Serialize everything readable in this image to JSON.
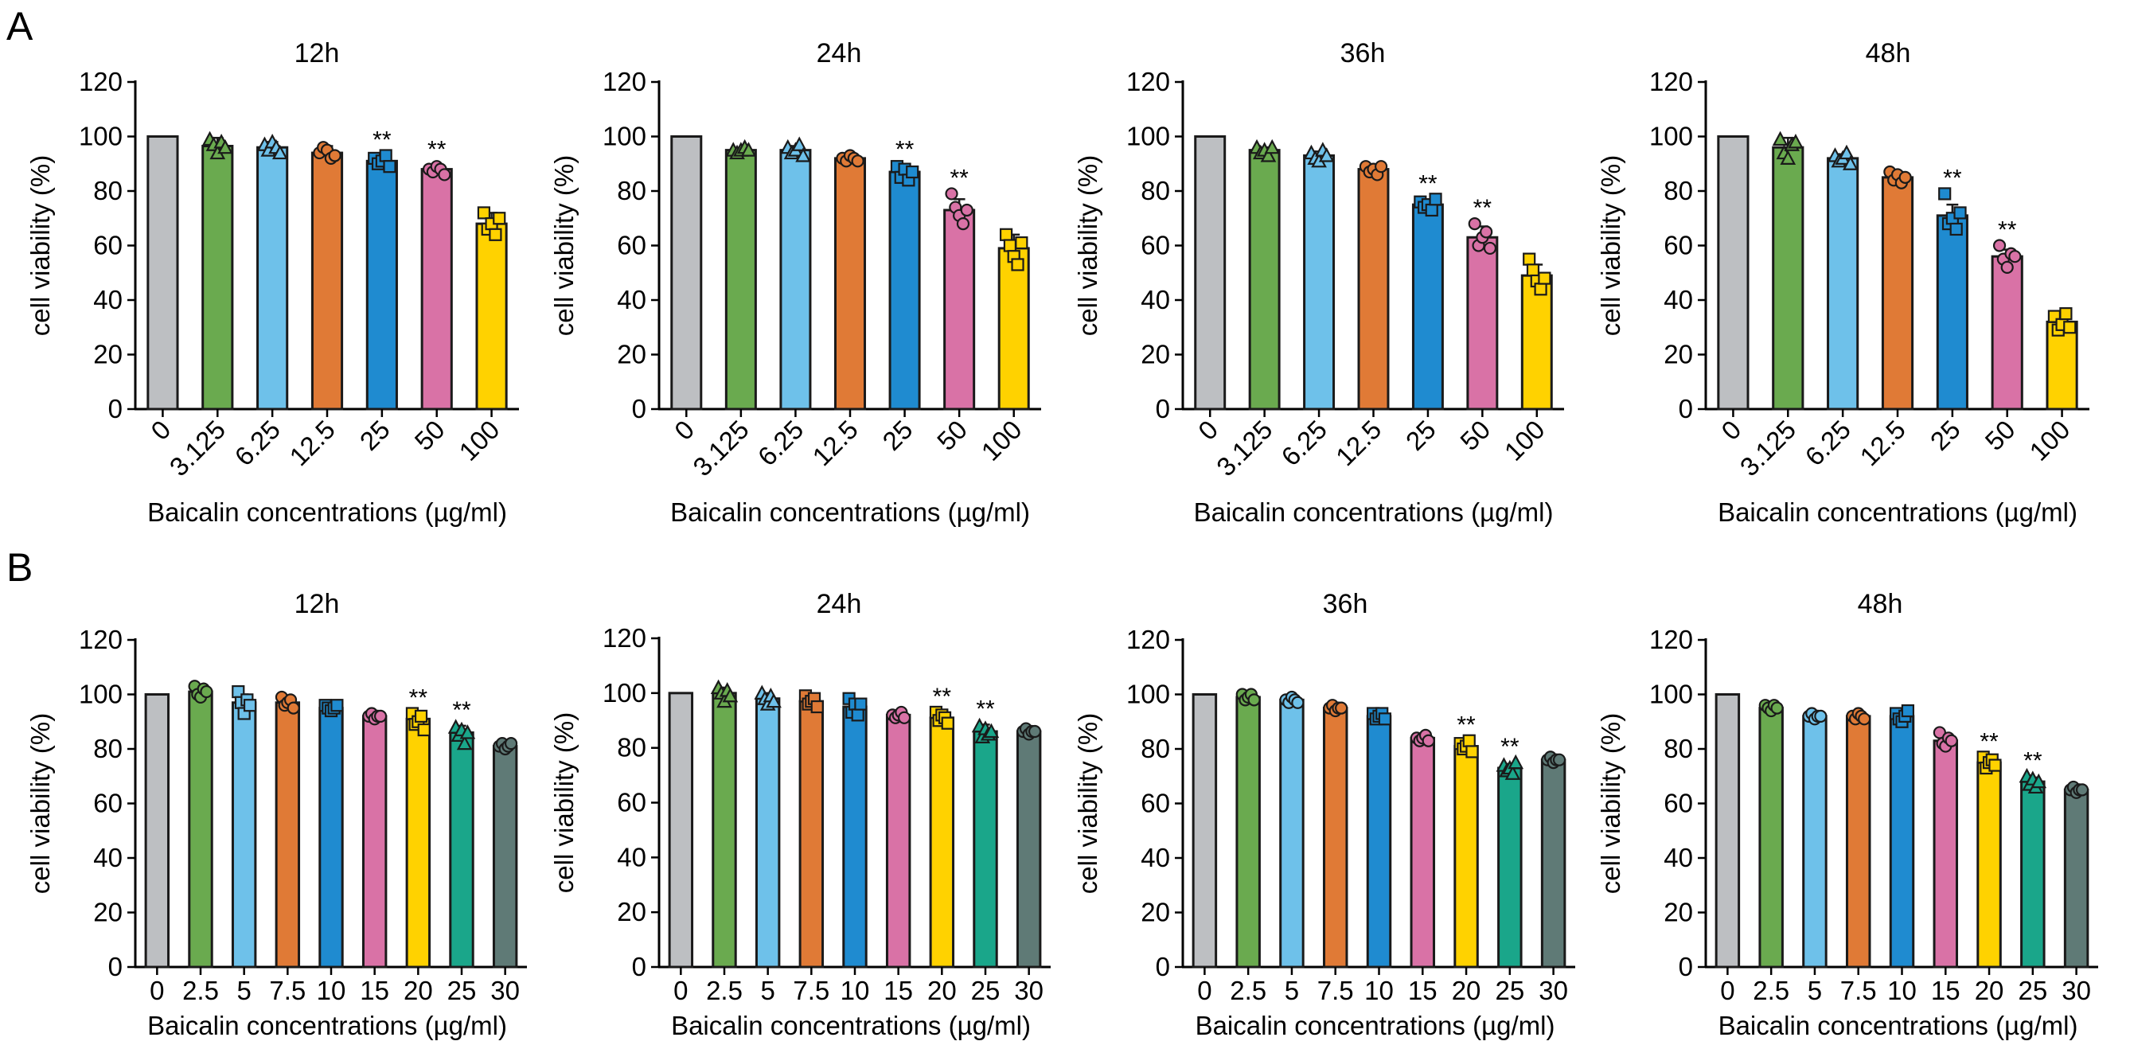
{
  "panel_labels": {
    "a": "A",
    "b": "B"
  },
  "colors": {
    "grey": "#bdbfc2",
    "green": "#6aaa4f",
    "lightblue": "#6ec1ea",
    "orange": "#e07a36",
    "blue": "#1f8bd0",
    "pink": "#d972a6",
    "yellow": "#ffd200",
    "teal": "#1aa68a",
    "slate": "#5f7a76"
  },
  "chart_data": [
    {
      "type": "bar",
      "panel": "A",
      "title": "12h",
      "xlabel": "Baicalin concentrations (µg/ml)",
      "ylabel": "cell viability (%)",
      "ylim": [
        0,
        120
      ],
      "yticks": [
        0,
        20,
        40,
        60,
        80,
        100,
        120
      ],
      "categories": [
        "0",
        "3.125",
        "6.25",
        "12.5",
        "25",
        "50",
        "100"
      ],
      "values": [
        100,
        96.5,
        96,
        94,
        91,
        88,
        68
      ],
      "errors": [
        0,
        3,
        2,
        2.5,
        2,
        1.5,
        4
      ],
      "significance": [
        "",
        "",
        "",
        "",
        "**",
        "**",
        ""
      ],
      "colors": [
        "#bdbfc2",
        "#6aaa4f",
        "#6ec1ea",
        "#e07a36",
        "#1f8bd0",
        "#d972a6",
        "#ffd200"
      ],
      "markers": [
        "none",
        "triangle",
        "triangle",
        "circle",
        "square",
        "circle",
        "square"
      ],
      "points": [
        [],
        [
          99,
          97,
          94,
          98,
          96
        ],
        [
          97,
          95,
          98,
          96,
          94
        ],
        [
          94,
          96,
          95,
          92,
          93
        ],
        [
          92,
          90,
          91,
          93,
          89
        ],
        [
          88,
          87,
          89,
          88,
          86
        ],
        [
          72,
          66,
          68,
          64,
          70
        ]
      ]
    },
    {
      "type": "bar",
      "panel": "A",
      "title": "24h",
      "xlabel": "Baicalin concentrations (µg/ml)",
      "ylabel": "cell viability (%)",
      "ylim": [
        0,
        120
      ],
      "yticks": [
        0,
        20,
        40,
        60,
        80,
        100,
        120
      ],
      "categories": [
        "0",
        "3.125",
        "6.25",
        "12.5",
        "25",
        "50",
        "100"
      ],
      "values": [
        100,
        95,
        95,
        92,
        87,
        73,
        59
      ],
      "errors": [
        0,
        0.8,
        1.5,
        1,
        2.5,
        4,
        5
      ],
      "significance": [
        "",
        "",
        "",
        "",
        "**",
        "**",
        ""
      ],
      "colors": [
        "#bdbfc2",
        "#6aaa4f",
        "#6ec1ea",
        "#e07a36",
        "#1f8bd0",
        "#d972a6",
        "#ffd200"
      ],
      "markers": [
        "none",
        "triangle",
        "triangle",
        "circle",
        "square",
        "circle",
        "square"
      ],
      "points": [
        [],
        [
          95,
          94,
          95,
          96,
          95
        ],
        [
          96,
          94,
          95,
          97,
          93
        ],
        [
          92,
          91,
          93,
          92,
          91
        ],
        [
          89,
          85,
          88,
          84,
          87
        ],
        [
          79,
          74,
          71,
          68,
          73
        ],
        [
          64,
          60,
          56,
          53,
          61
        ]
      ]
    },
    {
      "type": "bar",
      "panel": "A",
      "title": "36h",
      "xlabel": "Baicalin concentrations (µg/ml)",
      "ylabel": "cell viability (%)",
      "ylim": [
        0,
        120
      ],
      "yticks": [
        0,
        20,
        40,
        60,
        80,
        100,
        120
      ],
      "categories": [
        "0",
        "3.125",
        "6.25",
        "12.5",
        "25",
        "50",
        "100"
      ],
      "values": [
        100,
        95,
        93,
        88,
        75,
        63,
        49
      ],
      "errors": [
        0,
        1,
        1.5,
        1,
        1.5,
        4,
        4
      ],
      "significance": [
        "",
        "",
        "",
        "",
        "**",
        "**",
        ""
      ],
      "colors": [
        "#bdbfc2",
        "#6aaa4f",
        "#6ec1ea",
        "#e07a36",
        "#1f8bd0",
        "#d972a6",
        "#ffd200"
      ],
      "markers": [
        "none",
        "triangle",
        "triangle",
        "circle",
        "square",
        "circle",
        "square"
      ],
      "points": [
        [],
        [
          96,
          94,
          95,
          93,
          96
        ],
        [
          94,
          92,
          91,
          95,
          93
        ],
        [
          89,
          87,
          88,
          86,
          89
        ],
        [
          76,
          74,
          75,
          73,
          77
        ],
        [
          68,
          60,
          63,
          65,
          59
        ],
        [
          55,
          51,
          47,
          44,
          48
        ]
      ]
    },
    {
      "type": "bar",
      "panel": "A",
      "title": "48h",
      "xlabel": "Baicalin concentrations (µg/ml)",
      "ylabel": "cell viability (%)",
      "ylim": [
        0,
        120
      ],
      "yticks": [
        0,
        20,
        40,
        60,
        80,
        100,
        120
      ],
      "categories": [
        "0",
        "3.125",
        "6.25",
        "12.5",
        "25",
        "50",
        "100"
      ],
      "values": [
        100,
        96,
        92,
        85,
        71,
        56,
        32
      ],
      "errors": [
        0,
        3.5,
        1.5,
        2,
        4,
        2.5,
        2
      ],
      "significance": [
        "",
        "",
        "",
        "",
        "**",
        "**",
        ""
      ],
      "colors": [
        "#bdbfc2",
        "#6aaa4f",
        "#6ec1ea",
        "#e07a36",
        "#1f8bd0",
        "#d972a6",
        "#ffd200"
      ],
      "markers": [
        "none",
        "triangle",
        "triangle",
        "circle",
        "square",
        "circle",
        "square"
      ],
      "points": [
        [],
        [
          99,
          94,
          92,
          97,
          98
        ],
        [
          93,
          91,
          92,
          94,
          90
        ],
        [
          87,
          84,
          86,
          83,
          85
        ],
        [
          79,
          68,
          70,
          66,
          72
        ],
        [
          60,
          55,
          52,
          57,
          56
        ],
        [
          34,
          29,
          31,
          35,
          30
        ]
      ]
    },
    {
      "type": "bar",
      "panel": "B",
      "title": "12h",
      "xlabel": "Baicalin concentrations (µg/ml)",
      "ylabel": "cell viability (%)",
      "ylim": [
        0,
        120
      ],
      "yticks": [
        0,
        20,
        40,
        60,
        80,
        100,
        120
      ],
      "categories": [
        "0",
        "2.5",
        "5",
        "7.5",
        "10",
        "15",
        "20",
        "25",
        "30"
      ],
      "values": [
        100,
        101,
        97,
        97,
        95,
        92,
        91,
        86,
        81
      ],
      "errors": [
        0,
        2,
        3,
        1.5,
        1,
        0.8,
        2,
        2.5,
        0.8
      ],
      "significance": [
        "",
        "",
        "",
        "",
        "",
        "",
        "**",
        "**",
        ""
      ],
      "colors": [
        "#bdbfc2",
        "#6aaa4f",
        "#6ec1ea",
        "#e07a36",
        "#1f8bd0",
        "#d972a6",
        "#ffd200",
        "#1aa68a",
        "#5f7a76"
      ],
      "markers": [
        "none",
        "circle",
        "square",
        "circle",
        "square",
        "circle",
        "square",
        "triangle",
        "circle"
      ],
      "points": [
        [],
        [
          103,
          100,
          99,
          102,
          101
        ],
        [
          101,
          97,
          93,
          98,
          96
        ],
        [
          99,
          96,
          97,
          98,
          95
        ],
        [
          96,
          95,
          94,
          95,
          96
        ],
        [
          92,
          93,
          91,
          92,
          92
        ],
        [
          93,
          89,
          90,
          92,
          87
        ],
        [
          88,
          85,
          87,
          82,
          86
        ],
        [
          81,
          82,
          80,
          81,
          82
        ]
      ]
    },
    {
      "type": "bar",
      "panel": "B",
      "title": "24h",
      "xlabel": "Baicalin concentrations (µg/ml)",
      "ylabel": "cell viability (%)",
      "ylim": [
        0,
        120
      ],
      "yticks": [
        0,
        20,
        40,
        60,
        80,
        100,
        120
      ],
      "categories": [
        "0",
        "2.5",
        "5",
        "7.5",
        "10",
        "15",
        "20",
        "25",
        "30"
      ],
      "values": [
        100,
        100,
        98,
        97,
        95,
        92,
        91,
        86,
        86
      ],
      "errors": [
        0,
        2,
        2,
        1.5,
        2.5,
        0.8,
        1.5,
        2.5,
        0.8
      ],
      "significance": [
        "",
        "",
        "",
        "",
        "",
        "",
        "**",
        "**",
        ""
      ],
      "colors": [
        "#bdbfc2",
        "#6aaa4f",
        "#6ec1ea",
        "#e07a36",
        "#1f8bd0",
        "#d972a6",
        "#ffd200",
        "#1aa68a",
        "#5f7a76"
      ],
      "markers": [
        "none",
        "triangle",
        "triangle",
        "square",
        "square",
        "circle",
        "square",
        "triangle",
        "circle"
      ],
      "points": [
        [],
        [
          102,
          100,
          97,
          101,
          99
        ],
        [
          100,
          98,
          96,
          99,
          97
        ],
        [
          99,
          96,
          97,
          98,
          95
        ],
        [
          98,
          93,
          96,
          92,
          96
        ],
        [
          92,
          91,
          92,
          93,
          91
        ],
        [
          93,
          90,
          92,
          91,
          89
        ],
        [
          88,
          84,
          87,
          85,
          86
        ],
        [
          86,
          87,
          85,
          86,
          86
        ]
      ]
    },
    {
      "type": "bar",
      "panel": "B",
      "title": "36h",
      "xlabel": "Baicalin concentrations (µg/ml)",
      "ylabel": "cell viability (%)",
      "ylim": [
        0,
        120
      ],
      "yticks": [
        0,
        20,
        40,
        60,
        80,
        100,
        120
      ],
      "categories": [
        "0",
        "2.5",
        "5",
        "7.5",
        "10",
        "15",
        "20",
        "25",
        "30"
      ],
      "values": [
        100,
        99,
        98,
        95,
        92,
        84,
        81,
        73,
        76
      ],
      "errors": [
        0,
        1,
        1,
        0.8,
        1,
        0.6,
        1.5,
        1.5,
        1
      ],
      "significance": [
        "",
        "",
        "",
        "",
        "",
        "",
        "**",
        "**",
        ""
      ],
      "colors": [
        "#bdbfc2",
        "#6aaa4f",
        "#6ec1ea",
        "#e07a36",
        "#1f8bd0",
        "#d972a6",
        "#ffd200",
        "#1aa68a",
        "#5f7a76"
      ],
      "markers": [
        "none",
        "circle",
        "circle",
        "circle",
        "square",
        "circle",
        "square",
        "triangle",
        "circle"
      ],
      "points": [
        [],
        [
          100,
          98,
          99,
          100,
          98
        ],
        [
          98,
          97,
          99,
          98,
          97
        ],
        [
          95,
          96,
          94,
          95,
          95
        ],
        [
          93,
          91,
          92,
          93,
          91
        ],
        [
          84,
          83,
          84,
          85,
          83
        ],
        [
          82,
          80,
          81,
          83,
          79
        ],
        [
          74,
          72,
          73,
          71,
          75
        ],
        [
          76,
          77,
          75,
          76,
          76
        ]
      ]
    },
    {
      "type": "bar",
      "panel": "B",
      "title": "48h",
      "xlabel": "Baicalin concentrations (µg/ml)",
      "ylabel": "cell viability (%)",
      "ylim": [
        0,
        120
      ],
      "yticks": [
        0,
        20,
        40,
        60,
        80,
        100,
        120
      ],
      "categories": [
        "0",
        "2.5",
        "5",
        "7.5",
        "10",
        "15",
        "20",
        "25",
        "30"
      ],
      "values": [
        100,
        95,
        92,
        92,
        92,
        83,
        75,
        68,
        65
      ],
      "errors": [
        0,
        1,
        0.8,
        0.8,
        1.5,
        2,
        2,
        1.5,
        0.8
      ],
      "significance": [
        "",
        "",
        "",
        "",
        "",
        "",
        "**",
        "**",
        ""
      ],
      "colors": [
        "#bdbfc2",
        "#6aaa4f",
        "#6ec1ea",
        "#e07a36",
        "#1f8bd0",
        "#d972a6",
        "#ffd200",
        "#1aa68a",
        "#5f7a76"
      ],
      "markers": [
        "none",
        "circle",
        "circle",
        "circle",
        "square",
        "circle",
        "square",
        "triangle",
        "circle"
      ],
      "points": [
        [],
        [
          96,
          95,
          94,
          96,
          95
        ],
        [
          92,
          93,
          91,
          92,
          92
        ],
        [
          92,
          91,
          93,
          92,
          91
        ],
        [
          93,
          91,
          90,
          92,
          94
        ],
        [
          86,
          82,
          81,
          84,
          83
        ],
        [
          77,
          73,
          75,
          76,
          74
        ],
        [
          70,
          67,
          69,
          66,
          68
        ],
        [
          65,
          66,
          64,
          65,
          65
        ]
      ]
    }
  ]
}
